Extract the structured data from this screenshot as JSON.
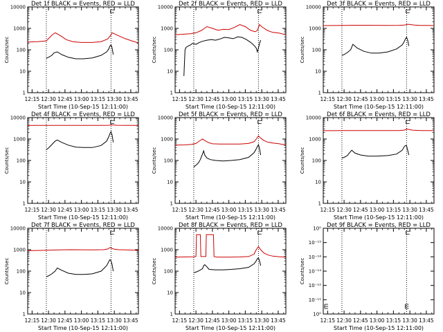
{
  "figure": {
    "colors": {
      "events": "#000000",
      "lld": "#cc0000",
      "axes": "#000000",
      "background": "#ffffff"
    },
    "common": {
      "ylabel": "Counts/sec",
      "xlabel": "Start Time (10-Sep-15 12:11:00)",
      "xticks": [
        "12:15",
        "12:30",
        "12:45",
        "13:00",
        "13:15",
        "13:30",
        "13:45"
      ],
      "xticks_minutes_from_12_00": [
        15,
        30,
        45,
        60,
        75,
        90,
        105
      ],
      "xlim_minutes_from_12_00": [
        11,
        112
      ],
      "vlines_minutes_from_12_00": [
        28,
        87
      ],
      "flare_marker": "⊏"
    }
  },
  "chart_data": [
    {
      "type": "line",
      "title": "Det 1f BLACK = Events, RED = LLD",
      "yscale": "log",
      "ylim": [
        1,
        10000
      ],
      "yticks": [
        "1",
        "10",
        "100",
        "1000",
        "10000"
      ],
      "series": [
        {
          "color": "red",
          "x": [
            11,
            20,
            28,
            30,
            33,
            36,
            38,
            42,
            46,
            52,
            60,
            70,
            78,
            84,
            87,
            88,
            90,
            94,
            100,
            106,
            112
          ],
          "y": [
            230,
            240,
            260,
            330,
            480,
            620,
            550,
            420,
            300,
            240,
            220,
            220,
            240,
            320,
            500,
            620,
            560,
            450,
            330,
            260,
            210
          ]
        },
        {
          "color": "black",
          "x": [
            28,
            30,
            33,
            35,
            38,
            42,
            48,
            55,
            62,
            70,
            78,
            83,
            85,
            86,
            87,
            88,
            89
          ],
          "y": [
            40,
            45,
            55,
            72,
            80,
            60,
            45,
            38,
            38,
            42,
            55,
            80,
            110,
            150,
            170,
            120,
            60
          ]
        }
      ]
    },
    {
      "type": "line",
      "title": "Det 2f BLACK = Events, RED = LLD",
      "yscale": "log",
      "ylim": [
        1,
        10000
      ],
      "yticks": [
        "1",
        "10",
        "100",
        "1000",
        "10000"
      ],
      "series": [
        {
          "color": "red",
          "x": [
            11,
            20,
            25,
            30,
            35,
            40,
            45,
            50,
            55,
            60,
            65,
            70,
            75,
            80,
            84,
            86,
            88,
            90,
            95,
            100,
            106,
            112
          ],
          "y": [
            500,
            540,
            560,
            620,
            800,
            1200,
            1000,
            820,
            900,
            880,
            1100,
            1500,
            1200,
            800,
            700,
            800,
            1500,
            1200,
            800,
            650,
            600,
            500
          ]
        },
        {
          "color": "black",
          "x": [
            19,
            20,
            21,
            23,
            25,
            27,
            30,
            33,
            36,
            40,
            44,
            48,
            52,
            56,
            60,
            64,
            68,
            72,
            76,
            80,
            83,
            85,
            86,
            87,
            88,
            89
          ],
          "y": [
            6,
            100,
            130,
            150,
            170,
            200,
            180,
            220,
            250,
            280,
            300,
            280,
            320,
            380,
            360,
            330,
            400,
            380,
            300,
            220,
            160,
            120,
            80,
            120,
            200,
            280
          ]
        }
      ]
    },
    {
      "type": "line",
      "title": "Det 3f BLACK = Events, RED = LLD",
      "yscale": "log",
      "ylim": [
        1,
        10000
      ],
      "yticks": [
        "1",
        "10",
        "100",
        "1000",
        "10000"
      ],
      "series": [
        {
          "color": "red",
          "x": [
            11,
            20,
            30,
            40,
            50,
            60,
            70,
            80,
            85,
            88,
            90,
            94,
            100,
            106,
            112
          ],
          "y": [
            1350,
            1360,
            1380,
            1400,
            1400,
            1390,
            1380,
            1390,
            1420,
            1550,
            1520,
            1420,
            1380,
            1370,
            1350
          ]
        },
        {
          "color": "black",
          "x": [
            28,
            30,
            33,
            36,
            38,
            42,
            48,
            55,
            62,
            70,
            78,
            83,
            85,
            86,
            87,
            88,
            89
          ],
          "y": [
            55,
            60,
            75,
            100,
            180,
            120,
            85,
            70,
            70,
            80,
            110,
            170,
            250,
            330,
            380,
            280,
            150
          ]
        }
      ]
    },
    {
      "type": "line",
      "title": "Det 4f BLACK = Events, RED = LLD",
      "yscale": "log",
      "ylim": [
        1,
        10000
      ],
      "yticks": [
        "1",
        "10",
        "100",
        "1000",
        "10000"
      ],
      "series": [
        {
          "color": "red",
          "x": [
            11,
            20,
            30,
            40,
            50,
            60,
            70,
            80,
            85,
            87,
            89,
            92,
            100,
            106,
            112
          ],
          "y": [
            4300,
            4310,
            4320,
            4330,
            4330,
            4320,
            4320,
            4330,
            4400,
            4600,
            4550,
            4400,
            4330,
            4320,
            4300
          ]
        },
        {
          "color": "black",
          "x": [
            28,
            30,
            33,
            36,
            38,
            42,
            48,
            55,
            62,
            70,
            78,
            83,
            85,
            86,
            87,
            88,
            89
          ],
          "y": [
            320,
            380,
            550,
            800,
            900,
            700,
            520,
            420,
            400,
            400,
            500,
            800,
            1300,
            1800,
            2200,
            1500,
            700
          ]
        }
      ]
    },
    {
      "type": "line",
      "title": "Det 5f BLACK = Events, RED = LLD",
      "yscale": "log",
      "ylim": [
        1,
        10000
      ],
      "yticks": [
        "1",
        "10",
        "100",
        "1000",
        "10000"
      ],
      "series": [
        {
          "color": "red",
          "x": [
            11,
            20,
            26,
            30,
            33,
            36,
            38,
            41,
            45,
            52,
            60,
            70,
            78,
            83,
            85,
            87,
            89,
            92,
            96,
            100,
            106,
            112
          ],
          "y": [
            520,
            530,
            560,
            620,
            800,
            1000,
            850,
            700,
            600,
            580,
            580,
            580,
            620,
            750,
            1000,
            1400,
            1100,
            850,
            700,
            650,
            600,
            520
          ]
        },
        {
          "color": "black",
          "x": [
            28,
            30,
            32,
            34,
            36,
            37,
            38,
            40,
            43,
            48,
            55,
            62,
            70,
            78,
            83,
            85,
            86,
            87,
            88,
            89
          ],
          "y": [
            50,
            60,
            75,
            110,
            200,
            280,
            180,
            130,
            110,
            100,
            95,
            100,
            110,
            140,
            230,
            350,
            450,
            550,
            350,
            180
          ]
        }
      ]
    },
    {
      "type": "line",
      "title": "Det 6f BLACK = Events, RED = LLD",
      "yscale": "log",
      "ylim": [
        1,
        10000
      ],
      "yticks": [
        "1",
        "10",
        "100",
        "1000",
        "10000"
      ],
      "series": [
        {
          "color": "red",
          "x": [
            11,
            20,
            30,
            40,
            50,
            60,
            70,
            80,
            85,
            87,
            89,
            92,
            100,
            106,
            112
          ],
          "y": [
            2450,
            2460,
            2470,
            2480,
            2480,
            2470,
            2470,
            2490,
            2600,
            2900,
            2800,
            2600,
            2500,
            2480,
            2450
          ]
        },
        {
          "color": "black",
          "x": [
            28,
            30,
            33,
            35,
            37,
            40,
            45,
            52,
            60,
            70,
            78,
            83,
            85,
            86,
            87,
            88,
            89
          ],
          "y": [
            130,
            140,
            170,
            230,
            300,
            220,
            180,
            160,
            160,
            170,
            200,
            300,
            450,
            500,
            480,
            300,
            180
          ]
        }
      ]
    },
    {
      "type": "line",
      "title": "Det 7f BLACK = Events, RED = LLD",
      "yscale": "log",
      "ylim": [
        1,
        10000
      ],
      "yticks": [
        "1",
        "10",
        "100",
        "1000",
        "10000"
      ],
      "series": [
        {
          "color": "red",
          "x": [
            11,
            20,
            30,
            40,
            50,
            60,
            70,
            80,
            84,
            86,
            88,
            90,
            94,
            100,
            106,
            112
          ],
          "y": [
            900,
            920,
            950,
            980,
            1000,
            990,
            980,
            1000,
            1080,
            1250,
            1150,
            1050,
            1000,
            980,
            960,
            920
          ]
        },
        {
          "color": "black",
          "x": [
            28,
            30,
            33,
            36,
            38,
            42,
            48,
            55,
            62,
            70,
            78,
            83,
            85,
            86,
            87,
            88,
            89
          ],
          "y": [
            55,
            60,
            75,
            100,
            140,
            110,
            80,
            70,
            70,
            75,
            100,
            180,
            280,
            340,
            300,
            200,
            100
          ]
        }
      ]
    },
    {
      "type": "line",
      "title": "Det 8f BLACK = Events, RED = LLD",
      "yscale": "log",
      "ylim": [
        1,
        10000
      ],
      "yticks": [
        "1",
        "10",
        "100",
        "1000",
        "10000"
      ],
      "series": [
        {
          "color": "red",
          "x": [
            11,
            20,
            28,
            30,
            30.5,
            34,
            34.5,
            39,
            39.5,
            46,
            46.5,
            48,
            50,
            55,
            60,
            70,
            78,
            83,
            85,
            87,
            89,
            92,
            96,
            100,
            106,
            112
          ],
          "y": [
            450,
            460,
            470,
            480,
            5000,
            5000,
            480,
            480,
            5000,
            5000,
            480,
            460,
            450,
            450,
            450,
            460,
            480,
            620,
            1000,
            1400,
            1000,
            700,
            560,
            500,
            470,
            450
          ]
        },
        {
          "color": "black",
          "x": [
            28,
            29,
            30,
            31,
            32,
            36,
            37,
            38,
            40,
            42,
            48,
            55,
            62,
            70,
            78,
            83,
            85,
            86,
            87,
            88,
            89
          ],
          "y": [
            85,
            88,
            90,
            95,
            100,
            130,
            180,
            200,
            160,
            120,
            115,
            115,
            120,
            130,
            150,
            220,
            300,
            380,
            420,
            300,
            180
          ]
        }
      ]
    },
    {
      "type": "line",
      "title": "Det 9f BLACK = Events, RED = LLD",
      "yscale": "log",
      "ylim": [
        1,
        1.5
      ],
      "yticks": [
        "10⁰",
        "10⁻¹¹",
        "10⁻¹²",
        "10⁻¹³",
        "10⁻¹⁴",
        "10⁻¹⁵",
        "10⁰"
      ],
      "series": []
    }
  ]
}
